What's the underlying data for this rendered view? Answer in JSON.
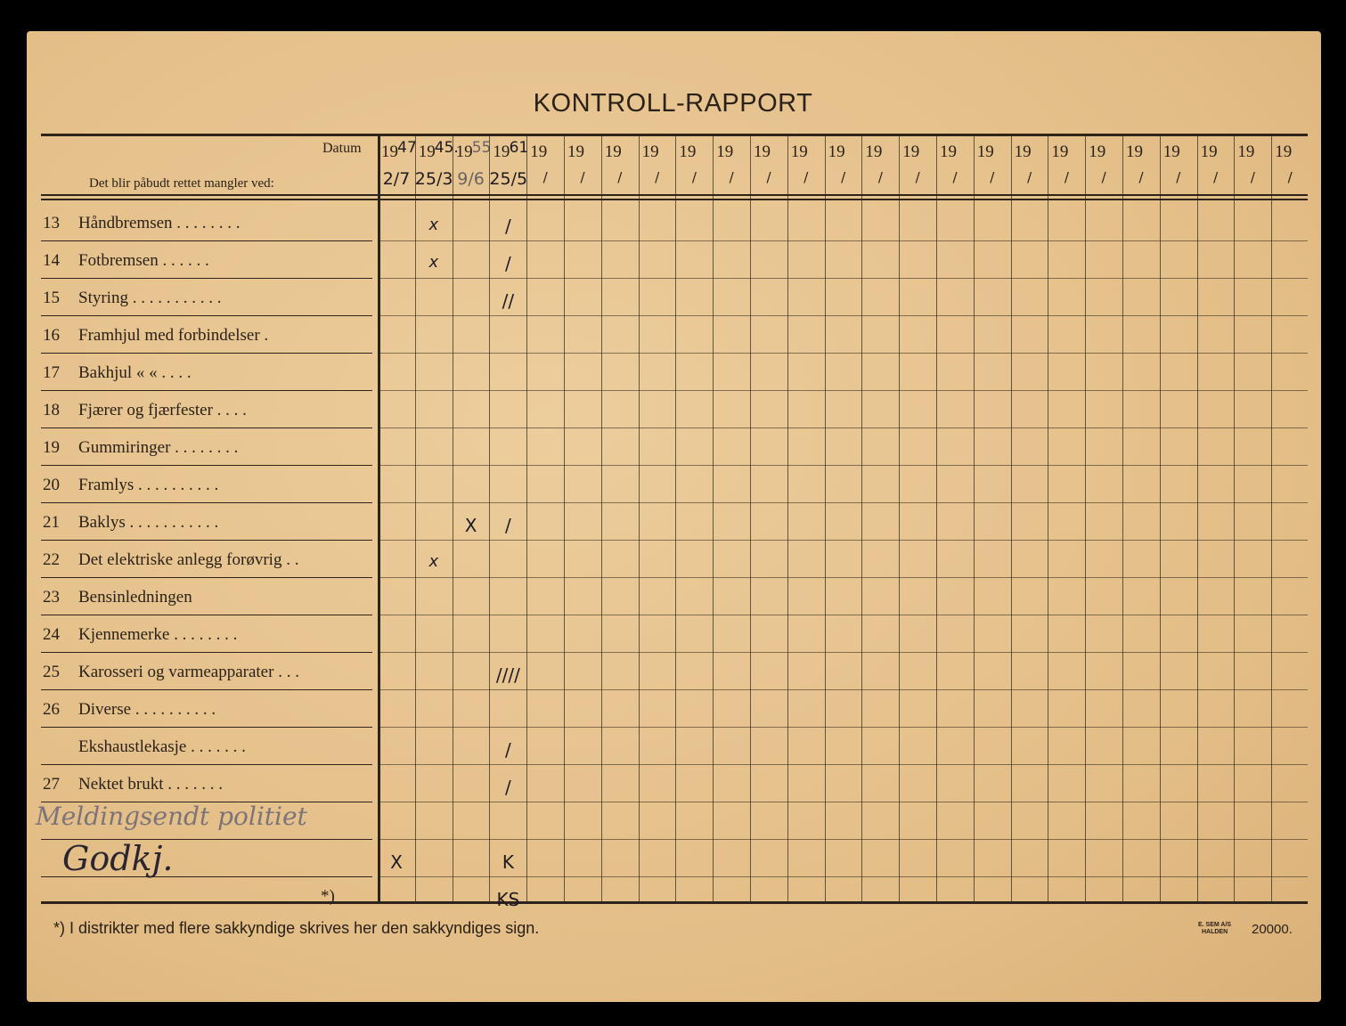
{
  "title": "KONTROLL-RAPPORT",
  "header": {
    "datum_label": "Datum",
    "rows_label": "Det blir påbudt rettet mangler ved:"
  },
  "columns": [
    {
      "year": "19",
      "year_hw": "47",
      "date": "2/7"
    },
    {
      "year": "19",
      "year_hw": "45.",
      "date": "25/3"
    },
    {
      "year": "19",
      "year_hw": "55",
      "date": "9/6"
    },
    {
      "year": "19",
      "year_hw": "61",
      "date": "25/5"
    },
    {
      "year": "19",
      "date": "/"
    },
    {
      "year": "19",
      "date": "/"
    },
    {
      "year": "19",
      "date": "/"
    },
    {
      "year": "19",
      "date": "/"
    },
    {
      "year": "19",
      "date": "/"
    },
    {
      "year": "19",
      "date": "/"
    },
    {
      "year": "19",
      "date": "/"
    },
    {
      "year": "19",
      "date": "/"
    },
    {
      "year": "19",
      "date": "/"
    },
    {
      "year": "19",
      "date": "/"
    },
    {
      "year": "19",
      "date": "/"
    },
    {
      "year": "19",
      "date": "/"
    },
    {
      "year": "19",
      "date": "/"
    },
    {
      "year": "19",
      "date": "/"
    },
    {
      "year": "19",
      "date": "/"
    },
    {
      "year": "19",
      "date": "/"
    },
    {
      "year": "19",
      "date": "/"
    },
    {
      "year": "19",
      "date": "/"
    },
    {
      "year": "19",
      "date": "/"
    },
    {
      "year": "19",
      "date": "/"
    },
    {
      "year": "19",
      "date": "/"
    }
  ],
  "rows": [
    {
      "num": "13",
      "label": "Håndbremsen . . . . . . . .",
      "marks": {
        "1": "x",
        "3": "/"
      }
    },
    {
      "num": "14",
      "label": "Fotbremsen . . . . . .",
      "marks": {
        "1": "x",
        "3": "/"
      }
    },
    {
      "num": "15",
      "label": "Styring . . . . . . . . . . .",
      "marks": {
        "3": "//"
      }
    },
    {
      "num": "16",
      "label": "Framhjul med forbindelser .",
      "marks": {}
    },
    {
      "num": "17",
      "label": "Bakhjul « « . . . .",
      "marks": {}
    },
    {
      "num": "18",
      "label": "Fjærer og fjærfester . . . .",
      "marks": {}
    },
    {
      "num": "19",
      "label": "Gummiringer . . . . . . . .",
      "marks": {}
    },
    {
      "num": "20",
      "label": "Framlys . . . . . . . . . .",
      "marks": {}
    },
    {
      "num": "21",
      "label": "Baklys . . . . . . . . . . .",
      "marks": {
        "2": "X",
        "3": "/"
      }
    },
    {
      "num": "22",
      "label": "Det elektriske anlegg forøvrig . .",
      "marks": {
        "1": "x"
      }
    },
    {
      "num": "23",
      "label": "Bensinledningen",
      "marks": {}
    },
    {
      "num": "24",
      "label": "Kjennemerke . . . . . . . .",
      "marks": {}
    },
    {
      "num": "25",
      "label": "Karosseri og varmeapparater . . .",
      "marks": {
        "3": "////"
      }
    },
    {
      "num": "26",
      "label": "Diverse . . . . . . . . . .",
      "marks": {}
    },
    {
      "num": "",
      "label": "Ekshaustlekasje . . . . . . .",
      "marks": {
        "3": "/"
      }
    },
    {
      "num": "27",
      "label": "Nektet brukt . . . . . . .",
      "marks": {
        "3": "/"
      }
    },
    {
      "num": "",
      "label": "",
      "handwritten": "Meldingsendt politiet",
      "marks": {}
    },
    {
      "num": "",
      "label": "",
      "handwritten": "Godkj.",
      "marks": {
        "0": "X",
        "3": "K"
      }
    },
    {
      "num": "",
      "label": "*)",
      "marks": {
        "3": "KS"
      }
    }
  ],
  "footnote": "*) I distrikter med flere sakkyndige skrives her den sakkyndiges sign.",
  "printer": {
    "line1": "E. SEM A/S",
    "line2": "HALDEN",
    "count": "20000."
  }
}
